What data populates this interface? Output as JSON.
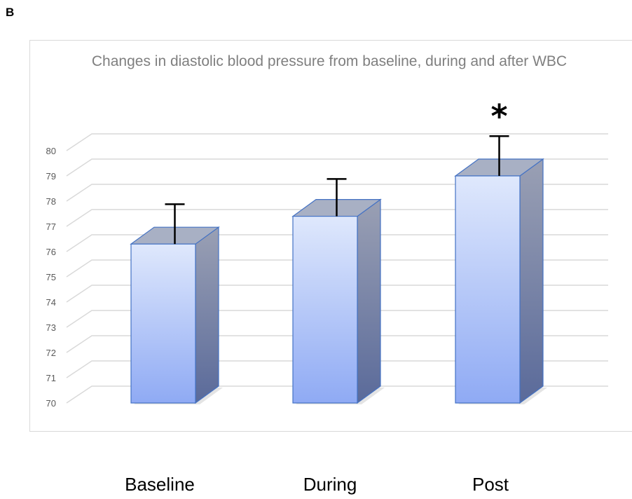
{
  "panel": {
    "label": "B"
  },
  "chart_data": {
    "type": "bar",
    "title": "Changes in diastolic blood pressure from baseline, during and after WBC",
    "categories": [
      "Baseline",
      "During",
      "Post"
    ],
    "values": [
      76.3,
      77.4,
      79.0
    ],
    "error_upper": [
      1.3,
      1.2,
      1.3
    ],
    "annotations": [
      "",
      "",
      "*"
    ],
    "ylim": [
      70,
      80
    ],
    "yticks": [
      "70",
      "71",
      "72",
      "73",
      "74",
      "75",
      "76",
      "77",
      "78",
      "79",
      "80"
    ],
    "xlabel": "",
    "ylabel": "",
    "grid": true,
    "style": "3d"
  },
  "colors": {
    "bar_top": "#dfe8fc",
    "bar_bottom": "#8faaf4",
    "bar_edge": "#4472c4",
    "grid": "#d9d9d9",
    "tick_text": "#595959",
    "title_text": "#7f7f7f"
  }
}
